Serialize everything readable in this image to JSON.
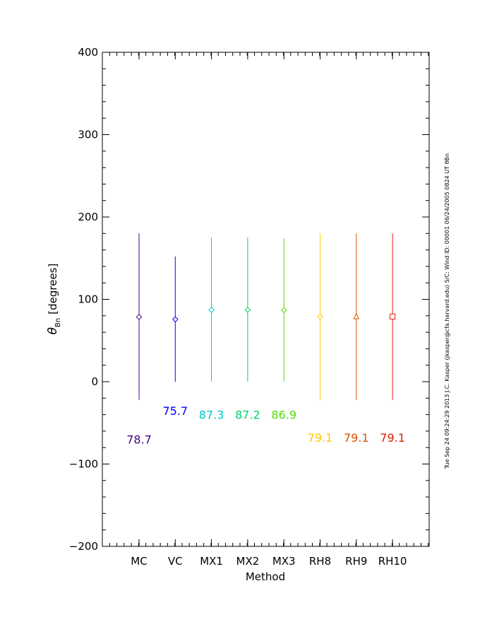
{
  "chart_data": {
    "type": "scatter",
    "xlabel": "Method",
    "ylabel_symbol": "θ",
    "ylabel_subscript": "Bn",
    "ylabel_units": "[degrees]",
    "ylim": [
      -200,
      400
    ],
    "yticks": [
      -200,
      -100,
      0,
      100,
      200,
      300,
      400
    ],
    "yticks_labels": [
      "−200",
      "−100",
      "0",
      "100",
      "200",
      "300",
      "400"
    ],
    "grid": false,
    "legend": "none",
    "categories": [
      "MC",
      "VC",
      "MX1",
      "MX2",
      "MX3",
      "RH8",
      "RH9",
      "RH10"
    ],
    "points": [
      {
        "method": "MC",
        "value": 78.7,
        "value_label": "78.7",
        "err_low": -22,
        "err_high": 180,
        "marker": "diamond",
        "color": "#4b0082"
      },
      {
        "method": "VC",
        "value": 75.7,
        "value_label": "75.7",
        "err_low": 0,
        "err_high": 152,
        "marker": "diamond",
        "color": "#0000ff"
      },
      {
        "method": "MX1",
        "value": 87.3,
        "value_label": "87.3",
        "err_low": 0,
        "err_high": 175,
        "marker": "diamond",
        "color": "#00c8c8"
      },
      {
        "method": "MX2",
        "value": 87.2,
        "value_label": "87.2",
        "err_low": 0,
        "err_high": 175,
        "marker": "diamond",
        "color": "#00d264"
      },
      {
        "method": "MX3",
        "value": 86.9,
        "value_label": "86.9",
        "err_low": 0,
        "err_high": 174,
        "marker": "diamond",
        "color": "#50dc00"
      },
      {
        "method": "RH8",
        "value": 79.1,
        "value_label": "79.1",
        "err_low": -22,
        "err_high": 180,
        "marker": "diamond",
        "color": "#ffc800"
      },
      {
        "method": "RH9",
        "value": 79.1,
        "value_label": "79.1",
        "err_low": -22,
        "err_high": 180,
        "marker": "triangle",
        "color": "#e05000"
      },
      {
        "method": "RH10",
        "value": 79.1,
        "value_label": "79.1",
        "err_low": -22,
        "err_high": 180,
        "marker": "square",
        "color": "#e01e00"
      }
    ],
    "label_y_values": [
      -70,
      -35,
      -40,
      -40,
      -40,
      -68,
      -68,
      -68
    ],
    "side_annotation": "Tue Sep 24 09:24:29 2013   J.C. Kasper (jkasper@cfa.harvard.edu)   S/C: Wind  ID: 00001  06/24/2005   0824 UT θBn"
  }
}
